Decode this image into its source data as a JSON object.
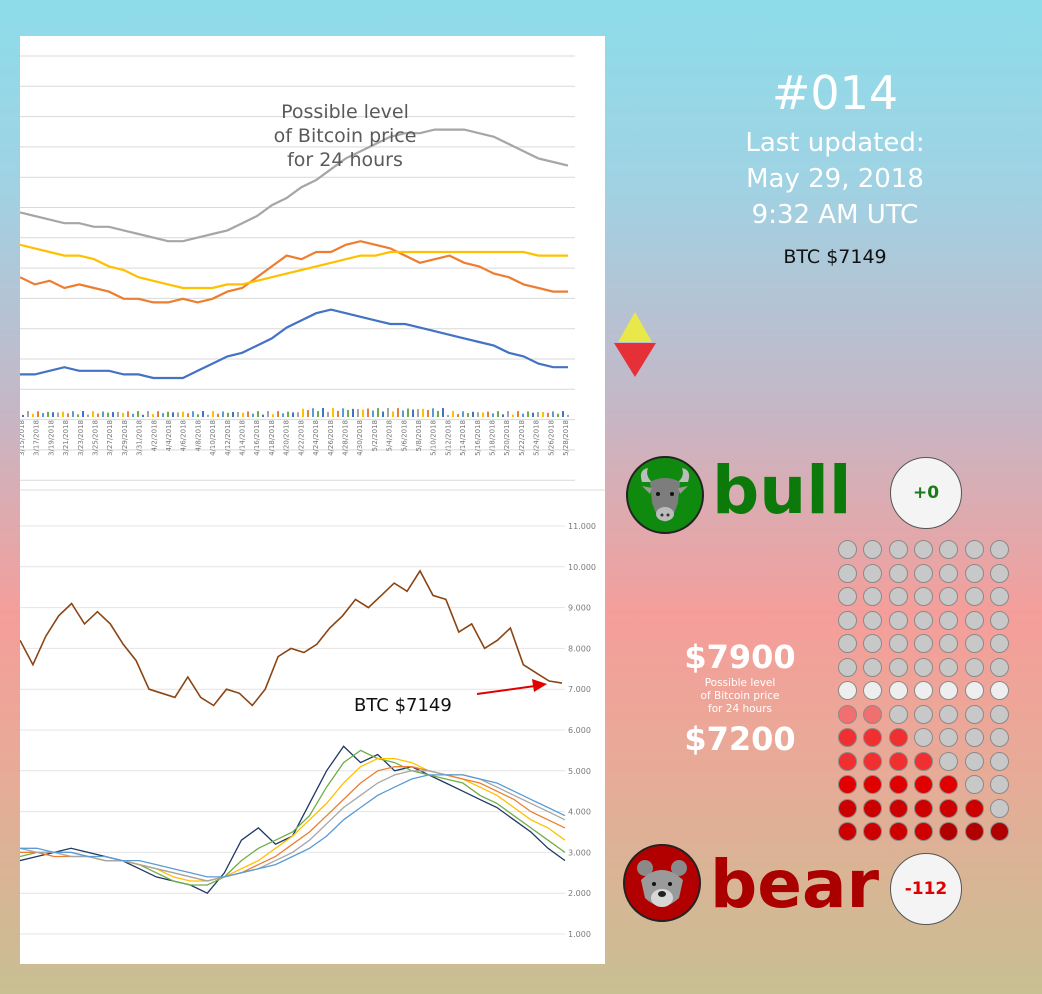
{
  "issue": {
    "number": "#014"
  },
  "update": {
    "line1": "Last updated:",
    "line2": "May 29, 2018",
    "line3": "9:32 AM UTC"
  },
  "btc_price_label": "BTC $7149",
  "chart_annotation": "BTC $7149",
  "top_chart_title": [
    "Possible level",
    "of Bitcoin price",
    "for 24 hours"
  ],
  "bull": {
    "label": "bull",
    "score": "+0",
    "color": "#0b7a0b"
  },
  "bear": {
    "label": "bear",
    "score": "-112",
    "color": "#aa0000"
  },
  "prediction": {
    "high": "$7900",
    "low": "$7200",
    "caption": [
      "Possible level",
      "of Bitcoin price",
      "for 24 hours"
    ]
  },
  "signal": {
    "up_color": "#e8e84a",
    "down_color": "#e63038"
  },
  "dot_grid": {
    "cols": 7,
    "colors": {
      "g": "#c8c8c8",
      "w": "#eeeeee",
      "p": "#f07070",
      "r": "#f03030",
      "R": "#e00000",
      "D": "#cc0000",
      "K": "#b00000"
    },
    "rows": [
      "ggggggg",
      "ggggggg",
      "ggggggg",
      "ggggggg",
      "ggggggg",
      "ggggggg",
      "wwwwwww",
      "ppggggg",
      "rrrgggg",
      "rrrrggg",
      "RRRRRgg",
      "DDDDDDg",
      "DDDDKKK"
    ]
  },
  "chart_data": [
    {
      "type": "line",
      "title": "Possible level of Bitcoin price for 24 hours",
      "x": [
        "3/15/2018",
        "3/17/2018",
        "3/19/2018",
        "3/21/2018",
        "3/23/2018",
        "3/25/2018",
        "3/27/2018",
        "3/29/2018",
        "3/31/2018",
        "4/2/2018",
        "4/4/2018",
        "4/6/2018",
        "4/8/2018",
        "4/10/2018",
        "4/12/2018",
        "4/14/2018",
        "4/16/2018",
        "4/18/2018",
        "4/20/2018",
        "4/22/2018",
        "4/24/2018",
        "4/26/2018",
        "4/28/2018",
        "4/30/2018",
        "5/2/2018",
        "5/4/2018",
        "5/6/2018",
        "5/8/2018",
        "5/10/2018",
        "5/12/2018",
        "5/14/2018",
        "5/16/2018",
        "5/18/2018",
        "5/20/2018",
        "5/22/2018",
        "5/24/2018",
        "5/26/2018",
        "5/28/2018"
      ],
      "series": [
        {
          "color": "#a6a6a6",
          "values": [
            5.1,
            5.0,
            4.9,
            4.8,
            4.8,
            4.7,
            4.7,
            4.6,
            4.5,
            4.4,
            4.3,
            4.3,
            4.4,
            4.5,
            4.6,
            4.8,
            5.0,
            5.3,
            5.5,
            5.8,
            6.0,
            6.3,
            6.6,
            6.8,
            7.0,
            7.2,
            7.3,
            7.3,
            7.4,
            7.4,
            7.4,
            7.3,
            7.2,
            7.0,
            6.8,
            6.6,
            6.5,
            6.4
          ]
        },
        {
          "color": "#ed7d31",
          "values": [
            3.3,
            3.1,
            3.2,
            3.0,
            3.1,
            3.0,
            2.9,
            2.7,
            2.7,
            2.6,
            2.6,
            2.7,
            2.6,
            2.7,
            2.9,
            3.0,
            3.3,
            3.6,
            3.9,
            3.8,
            4.0,
            4.0,
            4.2,
            4.3,
            4.2,
            4.1,
            3.9,
            3.7,
            3.8,
            3.9,
            3.7,
            3.6,
            3.4,
            3.3,
            3.1,
            3.0,
            2.9,
            2.9
          ]
        },
        {
          "color": "#ffc000",
          "values": [
            4.2,
            4.1,
            4.0,
            3.9,
            3.9,
            3.8,
            3.6,
            3.5,
            3.3,
            3.2,
            3.1,
            3.0,
            3.0,
            3.0,
            3.1,
            3.1,
            3.2,
            3.3,
            3.4,
            3.5,
            3.6,
            3.7,
            3.8,
            3.9,
            3.9,
            4.0,
            4.0,
            4.0,
            4.0,
            4.0,
            4.0,
            4.0,
            4.0,
            4.0,
            4.0,
            3.9,
            3.9,
            3.9
          ]
        },
        {
          "color": "#4472c4",
          "values": [
            0.6,
            0.6,
            0.7,
            0.8,
            0.7,
            0.7,
            0.7,
            0.6,
            0.6,
            0.5,
            0.5,
            0.5,
            0.7,
            0.9,
            1.1,
            1.2,
            1.4,
            1.6,
            1.9,
            2.1,
            2.3,
            2.4,
            2.3,
            2.2,
            2.1,
            2.0,
            2.0,
            1.9,
            1.8,
            1.7,
            1.6,
            1.5,
            1.4,
            1.2,
            1.1,
            0.9,
            0.8,
            0.8
          ]
        }
      ]
    },
    {
      "type": "line",
      "y_ticks": [
        "1.000",
        "2.000",
        "3.000",
        "4.000",
        "5.000",
        "6.000",
        "7.000",
        "8.000",
        "9.000",
        "10.000",
        "11.000"
      ],
      "ylim": [
        0,
        11
      ],
      "price": {
        "color": "#8b4513",
        "values": [
          8.2,
          7.6,
          8.3,
          8.8,
          9.1,
          8.6,
          8.9,
          8.6,
          8.1,
          7.7,
          7.0,
          6.9,
          6.8,
          7.3,
          6.8,
          6.6,
          7.0,
          6.9,
          6.6,
          7.0,
          7.8,
          8.0,
          7.9,
          8.1,
          8.5,
          8.8,
          9.2,
          9.0,
          9.3,
          9.6,
          9.4,
          9.9,
          9.3,
          9.2,
          8.4,
          8.6,
          8.0,
          8.2,
          8.5,
          7.6,
          7.4,
          7.2,
          7.15
        ]
      },
      "moving_averages": [
        {
          "color": "#1f3864",
          "values": [
            2.8,
            2.9,
            3.0,
            3.1,
            3.0,
            2.9,
            2.8,
            2.6,
            2.4,
            2.3,
            2.2,
            2.0,
            2.5,
            3.3,
            3.6,
            3.2,
            3.4,
            4.2,
            5.0,
            5.6,
            5.2,
            5.4,
            5.0,
            5.1,
            4.9,
            4.7,
            4.5,
            4.3,
            4.1,
            3.8,
            3.5,
            3.1,
            2.8
          ]
        },
        {
          "color": "#70ad47",
          "values": [
            2.9,
            3.0,
            3.0,
            3.0,
            2.9,
            2.8,
            2.8,
            2.7,
            2.5,
            2.3,
            2.2,
            2.2,
            2.4,
            2.8,
            3.1,
            3.3,
            3.5,
            3.9,
            4.6,
            5.2,
            5.5,
            5.3,
            5.2,
            5.0,
            4.9,
            4.8,
            4.7,
            4.4,
            4.2,
            3.9,
            3.6,
            3.3,
            3.0
          ]
        },
        {
          "color": "#ffc000",
          "values": [
            3.0,
            3.0,
            3.0,
            2.9,
            2.9,
            2.8,
            2.8,
            2.7,
            2.6,
            2.4,
            2.3,
            2.3,
            2.4,
            2.6,
            2.8,
            3.1,
            3.4,
            3.8,
            4.2,
            4.7,
            5.1,
            5.3,
            5.3,
            5.2,
            5.0,
            4.9,
            4.8,
            4.6,
            4.4,
            4.1,
            3.8,
            3.6,
            3.3
          ]
        },
        {
          "color": "#ed7d31",
          "values": [
            3.0,
            3.0,
            2.9,
            2.9,
            2.9,
            2.8,
            2.8,
            2.7,
            2.6,
            2.5,
            2.4,
            2.3,
            2.4,
            2.5,
            2.7,
            2.9,
            3.2,
            3.5,
            3.9,
            4.3,
            4.7,
            5.0,
            5.1,
            5.1,
            5.0,
            4.9,
            4.8,
            4.7,
            4.5,
            4.3,
            4.0,
            3.8,
            3.6
          ]
        },
        {
          "color": "#a6a6a6",
          "values": [
            3.1,
            3.0,
            3.0,
            2.9,
            2.9,
            2.8,
            2.8,
            2.7,
            2.6,
            2.5,
            2.4,
            2.3,
            2.4,
            2.5,
            2.6,
            2.8,
            3.0,
            3.3,
            3.7,
            4.1,
            4.4,
            4.7,
            4.9,
            5.0,
            5.0,
            4.9,
            4.9,
            4.8,
            4.6,
            4.4,
            4.2,
            4.0,
            3.8
          ]
        },
        {
          "color": "#5b9bd5",
          "values": [
            3.1,
            3.1,
            3.0,
            3.0,
            2.9,
            2.9,
            2.8,
            2.8,
            2.7,
            2.6,
            2.5,
            2.4,
            2.4,
            2.5,
            2.6,
            2.7,
            2.9,
            3.1,
            3.4,
            3.8,
            4.1,
            4.4,
            4.6,
            4.8,
            4.9,
            4.9,
            4.9,
            4.8,
            4.7,
            4.5,
            4.3,
            4.1,
            3.9
          ]
        }
      ]
    }
  ]
}
